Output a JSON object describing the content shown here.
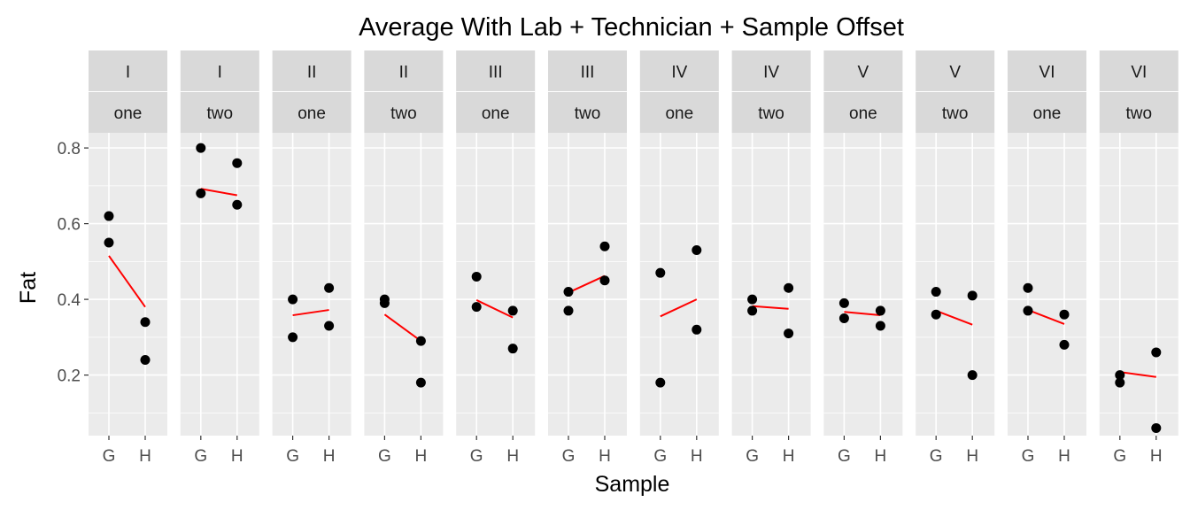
{
  "chart_data": {
    "type": "scatter",
    "title": "Average With Lab + Technician + Sample Offset",
    "xlabel": "Sample",
    "ylabel": "Fat",
    "x_categories": [
      "G",
      "H"
    ],
    "ylim": [
      0.04,
      0.84
    ],
    "y_ticks": [
      0.2,
      0.4,
      0.6,
      0.8
    ],
    "y_tick_labels": [
      "0.2",
      "0.4",
      "0.6",
      "0.8"
    ],
    "grid": true,
    "colors": {
      "panel_bg": "#ebebeb",
      "strip_bg": "#d9d9d9",
      "grid": "#ffffff",
      "points": "#000000",
      "fit_line": "#ff0000"
    },
    "facets": [
      {
        "lab": "I",
        "technician": "one",
        "points": [
          {
            "x": "G",
            "y": 0.62
          },
          {
            "x": "G",
            "y": 0.55
          },
          {
            "x": "H",
            "y": 0.34
          },
          {
            "x": "H",
            "y": 0.24
          }
        ],
        "fit": {
          "G": 0.515,
          "H": 0.38
        }
      },
      {
        "lab": "I",
        "technician": "two",
        "points": [
          {
            "x": "G",
            "y": 0.8
          },
          {
            "x": "G",
            "y": 0.68
          },
          {
            "x": "H",
            "y": 0.76
          },
          {
            "x": "H",
            "y": 0.65
          }
        ],
        "fit": {
          "G": 0.692,
          "H": 0.675
        }
      },
      {
        "lab": "II",
        "technician": "one",
        "points": [
          {
            "x": "G",
            "y": 0.4
          },
          {
            "x": "G",
            "y": 0.3
          },
          {
            "x": "H",
            "y": 0.43
          },
          {
            "x": "H",
            "y": 0.33
          }
        ],
        "fit": {
          "G": 0.358,
          "H": 0.372
        }
      },
      {
        "lab": "II",
        "technician": "two",
        "points": [
          {
            "x": "G",
            "y": 0.4
          },
          {
            "x": "G",
            "y": 0.39
          },
          {
            "x": "H",
            "y": 0.29
          },
          {
            "x": "H",
            "y": 0.18
          }
        ],
        "fit": {
          "G": 0.36,
          "H": 0.29
        }
      },
      {
        "lab": "III",
        "technician": "one",
        "points": [
          {
            "x": "G",
            "y": 0.46
          },
          {
            "x": "G",
            "y": 0.38
          },
          {
            "x": "H",
            "y": 0.37
          },
          {
            "x": "H",
            "y": 0.27
          }
        ],
        "fit": {
          "G": 0.398,
          "H": 0.352
        }
      },
      {
        "lab": "III",
        "technician": "two",
        "points": [
          {
            "x": "G",
            "y": 0.42
          },
          {
            "x": "G",
            "y": 0.37
          },
          {
            "x": "H",
            "y": 0.54
          },
          {
            "x": "H",
            "y": 0.45
          }
        ],
        "fit": {
          "G": 0.418,
          "H": 0.462
        }
      },
      {
        "lab": "IV",
        "technician": "one",
        "points": [
          {
            "x": "G",
            "y": 0.47
          },
          {
            "x": "G",
            "y": 0.18
          },
          {
            "x": "H",
            "y": 0.53
          },
          {
            "x": "H",
            "y": 0.32
          }
        ],
        "fit": {
          "G": 0.355,
          "H": 0.4
        }
      },
      {
        "lab": "IV",
        "technician": "two",
        "points": [
          {
            "x": "G",
            "y": 0.4
          },
          {
            "x": "G",
            "y": 0.37
          },
          {
            "x": "H",
            "y": 0.43
          },
          {
            "x": "H",
            "y": 0.31
          }
        ],
        "fit": {
          "G": 0.382,
          "H": 0.375
        }
      },
      {
        "lab": "V",
        "technician": "one",
        "points": [
          {
            "x": "G",
            "y": 0.39
          },
          {
            "x": "G",
            "y": 0.35
          },
          {
            "x": "H",
            "y": 0.37
          },
          {
            "x": "H",
            "y": 0.33
          }
        ],
        "fit": {
          "G": 0.367,
          "H": 0.358
        }
      },
      {
        "lab": "V",
        "technician": "two",
        "points": [
          {
            "x": "G",
            "y": 0.42
          },
          {
            "x": "G",
            "y": 0.36
          },
          {
            "x": "H",
            "y": 0.41
          },
          {
            "x": "H",
            "y": 0.2
          }
        ],
        "fit": {
          "G": 0.37,
          "H": 0.333
        }
      },
      {
        "lab": "VI",
        "technician": "one",
        "points": [
          {
            "x": "G",
            "y": 0.43
          },
          {
            "x": "G",
            "y": 0.37
          },
          {
            "x": "H",
            "y": 0.36
          },
          {
            "x": "H",
            "y": 0.28
          }
        ],
        "fit": {
          "G": 0.372,
          "H": 0.335
        }
      },
      {
        "lab": "VI",
        "technician": "two",
        "points": [
          {
            "x": "G",
            "y": 0.2
          },
          {
            "x": "G",
            "y": 0.18
          },
          {
            "x": "H",
            "y": 0.26
          },
          {
            "x": "H",
            "y": 0.06
          }
        ],
        "fit": {
          "G": 0.208,
          "H": 0.195
        }
      }
    ]
  }
}
